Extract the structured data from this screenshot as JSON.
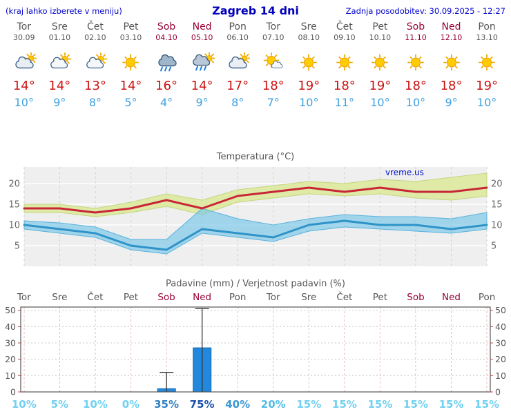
{
  "header": {
    "note": "(kraj lahko izberete v meniju)",
    "title": "Zagreb 14 dni",
    "updated": "Zadnja posodobitev: 30.09.2025 - 12:27"
  },
  "watermark": "vreme.us",
  "days": [
    {
      "name": "Tor",
      "date": "30.09",
      "weekend": false,
      "icon": "cloudy",
      "tmax": "14°",
      "tmin": "10°",
      "prob": "10%",
      "prob_color": "#6fd0f0"
    },
    {
      "name": "Sre",
      "date": "01.10",
      "weekend": false,
      "icon": "sun-cloud",
      "tmax": "14°",
      "tmin": "9°",
      "prob": "5%",
      "prob_color": "#6fd0f0"
    },
    {
      "name": "Čet",
      "date": "02.10",
      "weekend": false,
      "icon": "sun-cloud",
      "tmax": "13°",
      "tmin": "8°",
      "prob": "10%",
      "prob_color": "#6fd0f0"
    },
    {
      "name": "Pet",
      "date": "03.10",
      "weekend": false,
      "icon": "sunny",
      "tmax": "14°",
      "tmin": "5°",
      "prob": "0%",
      "prob_color": "#6fd0f0"
    },
    {
      "name": "Sob",
      "date": "04.10",
      "weekend": true,
      "icon": "rain",
      "tmax": "16°",
      "tmin": "4°",
      "prob": "35%",
      "prob_color": "#2f7fc1"
    },
    {
      "name": "Ned",
      "date": "05.10",
      "weekend": true,
      "icon": "sun-rain",
      "tmax": "14°",
      "tmin": "9°",
      "prob": "75%",
      "prob_color": "#1a4faa"
    },
    {
      "name": "Pon",
      "date": "06.10",
      "weekend": false,
      "icon": "cloudy",
      "tmax": "17°",
      "tmin": "8°",
      "prob": "40%",
      "prob_color": "#3b96d2"
    },
    {
      "name": "Tor",
      "date": "07.10",
      "weekend": false,
      "icon": "mostly-sunny",
      "tmax": "18°",
      "tmin": "7°",
      "prob": "20%",
      "prob_color": "#55bce4"
    },
    {
      "name": "Sre",
      "date": "08.10",
      "weekend": false,
      "icon": "sunny",
      "tmax": "19°",
      "tmin": "10°",
      "prob": "15%",
      "prob_color": "#6fd0f0"
    },
    {
      "name": "Čet",
      "date": "09.10",
      "weekend": false,
      "icon": "sunny",
      "tmax": "18°",
      "tmin": "11°",
      "prob": "15%",
      "prob_color": "#6fd0f0"
    },
    {
      "name": "Pet",
      "date": "10.10",
      "weekend": false,
      "icon": "sunny",
      "tmax": "19°",
      "tmin": "10°",
      "prob": "15%",
      "prob_color": "#6fd0f0"
    },
    {
      "name": "Sob",
      "date": "11.10",
      "weekend": true,
      "icon": "sunny",
      "tmax": "18°",
      "tmin": "10°",
      "prob": "15%",
      "prob_color": "#6fd0f0"
    },
    {
      "name": "Ned",
      "date": "12.10",
      "weekend": true,
      "icon": "sunny",
      "tmax": "18°",
      "tmin": "9°",
      "prob": "15%",
      "prob_color": "#6fd0f0"
    },
    {
      "name": "Pon",
      "date": "13.10",
      "weekend": false,
      "icon": "sunny",
      "tmax": "19°",
      "tmin": "10°",
      "prob": "15%",
      "prob_color": "#6fd0f0"
    }
  ],
  "chart_data": [
    {
      "type": "line",
      "title": "Temperatura (°C)",
      "categories": [
        "30.09",
        "01.10",
        "02.10",
        "03.10",
        "04.10",
        "05.10",
        "06.10",
        "07.10",
        "08.10",
        "09.10",
        "10.10",
        "11.10",
        "12.10",
        "13.10"
      ],
      "ylim": [
        0,
        24
      ],
      "yticks": [
        5,
        10,
        15,
        20
      ],
      "grid": true,
      "watermark": "vreme.us",
      "band_colors": {
        "max": "#dce9a0",
        "min": "#74c4e8"
      },
      "series": [
        {
          "name": "max-temp",
          "color": "#c82637",
          "values": [
            14,
            14,
            13,
            14,
            16,
            14,
            17,
            18,
            19,
            18,
            19,
            18,
            18,
            19
          ]
        },
        {
          "name": "min-temp",
          "color": "#2f93c8",
          "values": [
            10,
            9,
            8,
            5,
            4,
            9,
            8,
            7,
            10,
            11,
            10,
            10,
            9,
            10
          ]
        },
        {
          "name": "max-band-upper",
          "values": [
            15,
            15,
            14,
            15.5,
            17.5,
            16,
            18.5,
            19.5,
            20.5,
            20,
            21,
            20.5,
            21.5,
            22.5
          ]
        },
        {
          "name": "max-band-lower",
          "values": [
            13,
            13,
            12,
            13,
            14.5,
            12.5,
            15.5,
            16.5,
            17.5,
            17,
            17.5,
            16.5,
            16,
            17
          ]
        },
        {
          "name": "min-band-upper",
          "values": [
            11,
            10.5,
            9.5,
            6.5,
            6.5,
            14,
            11.5,
            10,
            11.5,
            12.5,
            12,
            12,
            11.5,
            13
          ]
        },
        {
          "name": "min-band-lower",
          "values": [
            9,
            8,
            7,
            4,
            3,
            8,
            7,
            6,
            8.5,
            9.5,
            9,
            8.5,
            8,
            9
          ]
        }
      ]
    },
    {
      "type": "bar",
      "title": "Padavine (mm) / Verjetnost padavin (%)",
      "categories": [
        "Tor",
        "Sre",
        "Čet",
        "Pet",
        "Sob",
        "Ned",
        "Pon",
        "Tor",
        "Sre",
        "Čet",
        "Pet",
        "Sob",
        "Ned",
        "Pon"
      ],
      "weekend_flags": [
        false,
        false,
        false,
        false,
        true,
        true,
        false,
        false,
        false,
        false,
        false,
        true,
        true,
        false
      ],
      "precip_mm": [
        0,
        0,
        0,
        0,
        2,
        27,
        0,
        0,
        0,
        0,
        0,
        0,
        0,
        0
      ],
      "precip_max_mm": [
        0,
        0,
        0,
        0,
        12,
        51,
        0,
        0,
        0,
        0,
        0,
        0,
        0,
        0
      ],
      "probability_pct": [
        10,
        5,
        10,
        0,
        35,
        75,
        40,
        20,
        15,
        15,
        15,
        15,
        15,
        15
      ],
      "ylim": [
        0,
        52
      ],
      "yticks": [
        0,
        10,
        20,
        30,
        40,
        50
      ],
      "bar_color": "#2288dd"
    }
  ]
}
